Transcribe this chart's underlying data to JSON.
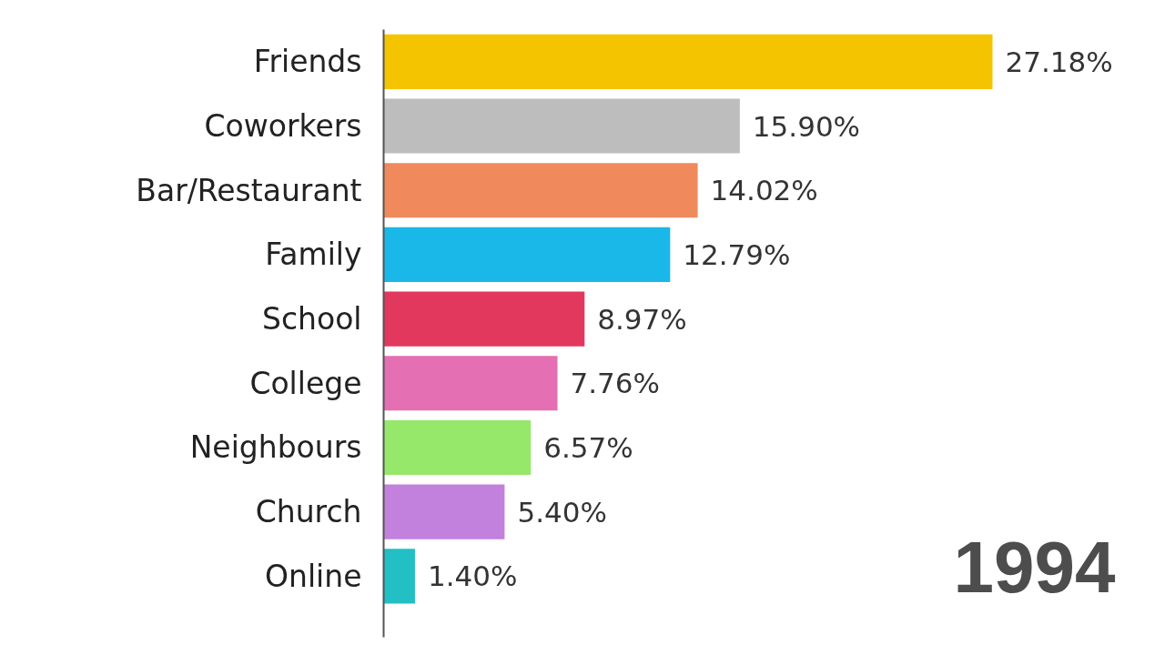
{
  "chart_data": {
    "type": "bar",
    "orientation": "horizontal",
    "categories": [
      "Friends",
      "Coworkers",
      "Bar/Restaurant",
      "Family",
      "School",
      "College",
      "Neighbours",
      "Church",
      "Online"
    ],
    "values": [
      27.18,
      15.9,
      14.02,
      12.79,
      8.97,
      7.76,
      6.57,
      5.4,
      1.4
    ],
    "colors": [
      "#f5c400",
      "#bdbdbd",
      "#f08a5d",
      "#1ab8e8",
      "#e3385e",
      "#e46fb3",
      "#96e86a",
      "#c281dc",
      "#22bfc4"
    ],
    "value_labels": [
      "27.18%",
      "15.90%",
      "14.02%",
      "12.79%",
      "8.97%",
      "7.76%",
      "6.57%",
      "5.40%",
      "1.40%"
    ],
    "tick_labels": "y",
    "grid": false,
    "annotations": [
      "1994"
    ]
  }
}
